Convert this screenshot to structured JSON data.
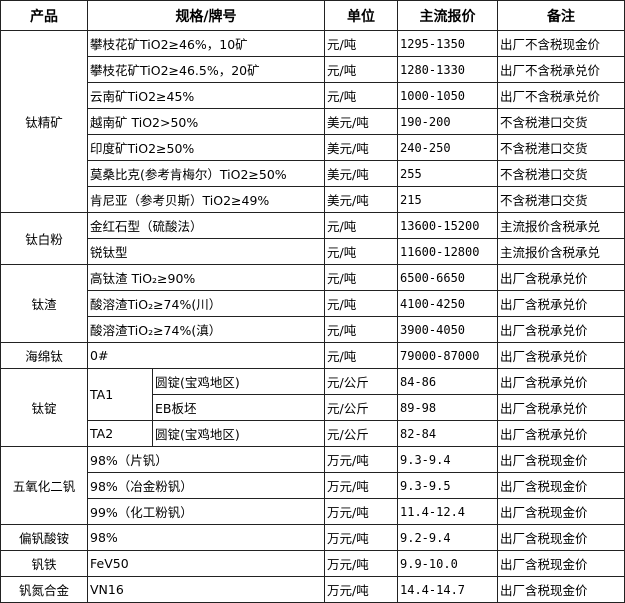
{
  "headers": [
    "产品",
    "规格/牌号",
    "单位",
    "主流报价",
    "备注"
  ],
  "groups": [
    {
      "product": "钛精矿",
      "rows": [
        {
          "spec": "攀枝花矿TiO2≥46%，10矿",
          "unit": "元/吨",
          "price": "1295-1350",
          "note": "出厂不含税现金价"
        },
        {
          "spec": "攀枝花矿TiO2≥46.5%，20矿",
          "unit": "元/吨",
          "price": "1280-1330",
          "note": "出厂不含税承兑价"
        },
        {
          "spec": "云南矿TiO2≥45%",
          "unit": "元/吨",
          "price": "1000-1050",
          "note": "出厂不含税承兑价"
        },
        {
          "spec": "越南矿 TiO2>50%",
          "unit": "美元/吨",
          "price": "190-200",
          "note": "不含税港口交货"
        },
        {
          "spec": "印度矿TiO2≥50%",
          "unit": "美元/吨",
          "price": "240-250",
          "note": "不含税港口交货"
        },
        {
          "spec": "莫桑比克(参考肯梅尔）TiO2≥50%",
          "unit": "美元/吨",
          "price": "255",
          "note": "不含税港口交货"
        },
        {
          "spec": "肯尼亚（参考贝斯）TiO2≥49%",
          "unit": "美元/吨",
          "price": "215",
          "note": "不含税港口交货"
        }
      ]
    },
    {
      "product": "钛白粉",
      "rows": [
        {
          "spec": "金红石型（硫酸法）",
          "unit": "元/吨",
          "price": "13600-15200",
          "note": "主流报价含税承兑"
        },
        {
          "spec": "锐钛型",
          "unit": "元/吨",
          "price": "11600-12800",
          "note": "主流报价含税承兑"
        }
      ]
    },
    {
      "product": "钛渣",
      "rows": [
        {
          "spec": "高钛渣 TiO₂≥90%",
          "unit": "元/吨",
          "price": "6500-6650",
          "note": "出厂含税承兑价"
        },
        {
          "spec": "酸溶渣TiO₂≥74%(川）",
          "unit": "元/吨",
          "price": "4100-4250",
          "note": "出厂含税承兑价"
        },
        {
          "spec": "酸溶渣TiO₂≥74%(滇）",
          "unit": "元/吨",
          "price": "3900-4050",
          "note": "出厂含税承兑价"
        }
      ]
    },
    {
      "product": "海绵钛",
      "rows": [
        {
          "spec": "0#",
          "unit": "元/吨",
          "price": "79000-87000",
          "note": "出厂含税承兑价"
        }
      ]
    },
    {
      "product": "钛锭",
      "subgroups": [
        {
          "grade": "TA1",
          "rows": [
            {
              "spec": "圆锭(宝鸡地区)",
              "unit": "元/公斤",
              "price": "84-86",
              "note": "出厂含税承兑价"
            },
            {
              "spec": "EB板坯",
              "unit": "元/公斤",
              "price": "89-98",
              "note": "出厂含税承兑价"
            }
          ]
        },
        {
          "grade": "TA2",
          "rows": [
            {
              "spec": "圆锭(宝鸡地区)",
              "unit": "元/公斤",
              "price": "82-84",
              "note": "出厂含税承兑价"
            }
          ]
        }
      ]
    },
    {
      "product": "五氧化二钒",
      "rows": [
        {
          "spec": "98%（片钒）",
          "unit": "万元/吨",
          "price": "9.3-9.4",
          "note": "出厂含税现金价"
        },
        {
          "spec": "98%（冶金粉钒）",
          "unit": "万元/吨",
          "price": "9.3-9.5",
          "note": "出厂含税现金价"
        },
        {
          "spec": "99%（化工粉钒）",
          "unit": "万元/吨",
          "price": "11.4-12.4",
          "note": "出厂含税现金价"
        }
      ]
    },
    {
      "product": "偏钒酸铵",
      "rows": [
        {
          "spec": "98%",
          "unit": "万元/吨",
          "price": "9.2-9.4",
          "note": "出厂含税现金价"
        }
      ]
    },
    {
      "product": "钒铁",
      "rows": [
        {
          "spec": "FeV50",
          "unit": "万元/吨",
          "price": "9.9-10.0",
          "note": "出厂含税现金价"
        }
      ]
    },
    {
      "product": "钒氮合金",
      "rows": [
        {
          "spec": "VN16",
          "unit": "万元/吨",
          "price": "14.4-14.7",
          "note": "出厂含税现金价"
        }
      ]
    }
  ]
}
